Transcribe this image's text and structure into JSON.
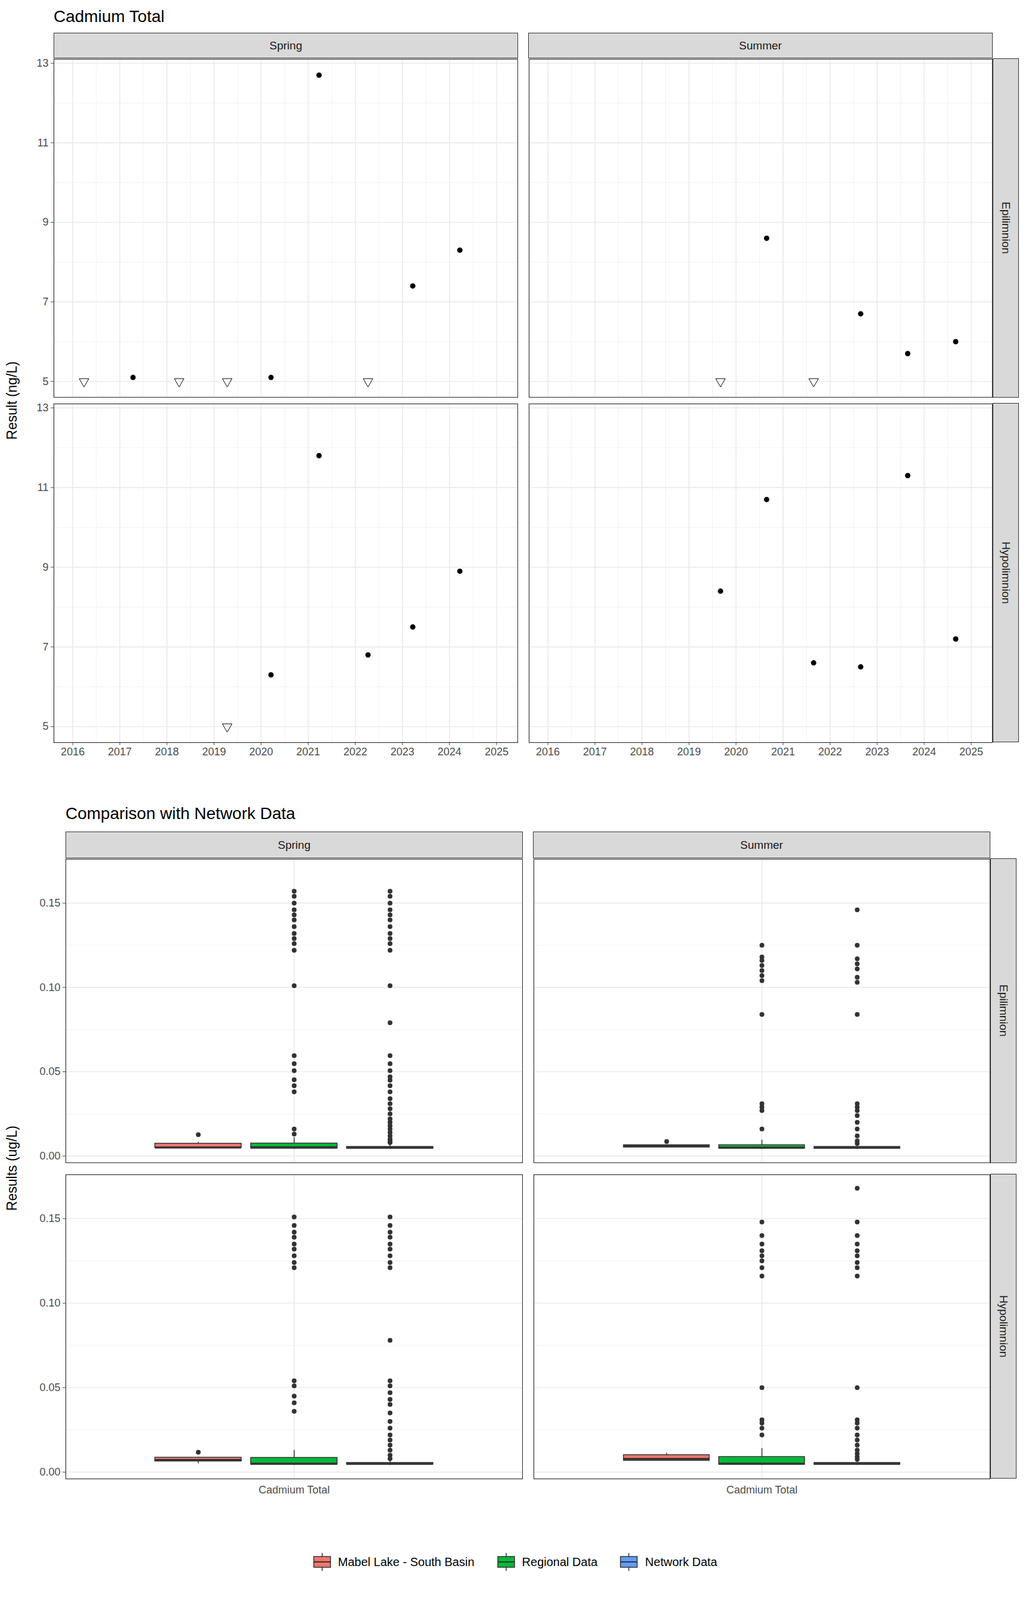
{
  "chart_data": [
    {
      "type": "scatter",
      "title": "Cadmium Total",
      "y_label": "Result (ng/L)",
      "xlim": [
        2015.6,
        2025.45
      ],
      "xticks": [
        2016,
        2017,
        2018,
        2019,
        2020,
        2021,
        2022,
        2023,
        2024,
        2025
      ],
      "ylim": [
        4.6,
        13.1
      ],
      "yticks": [
        5,
        7,
        9,
        11,
        13
      ],
      "grid": true,
      "columns": [
        "Spring",
        "Summer"
      ],
      "rows": [
        "Epilimnion",
        "Hypolimnion"
      ],
      "panels": [
        {
          "column": "Spring",
          "row": "Epilimnion",
          "series": [
            {
              "marker": "circle",
              "x": [
                2017.28,
                2020.21,
                2021.23,
                2023.22,
                2024.22
              ],
              "values": [
                5.1,
                5.1,
                12.7,
                7.4,
                8.3
              ]
            },
            {
              "marker": "triangle-down-open",
              "x": [
                2016.24,
                2018.26,
                2019.28,
                2022.27
              ],
              "values": [
                5,
                5,
                5,
                5
              ]
            }
          ]
        },
        {
          "column": "Summer",
          "row": "Epilimnion",
          "series": [
            {
              "marker": "circle",
              "x": [
                2020.65,
                2022.65,
                2023.65,
                2024.67
              ],
              "values": [
                8.6,
                6.7,
                5.7,
                6.0
              ]
            },
            {
              "marker": "triangle-down-open",
              "x": [
                2019.67,
                2021.65
              ],
              "values": [
                5,
                5
              ]
            }
          ]
        },
        {
          "column": "Spring",
          "row": "Hypolimnion",
          "series": [
            {
              "marker": "circle",
              "x": [
                2020.21,
                2021.23,
                2022.27,
                2023.22,
                2024.22
              ],
              "values": [
                6.3,
                11.8,
                6.8,
                7.5,
                8.9
              ]
            },
            {
              "marker": "triangle-down-open",
              "x": [
                2019.28
              ],
              "values": [
                5
              ]
            }
          ]
        },
        {
          "column": "Summer",
          "row": "Hypolimnion",
          "series": [
            {
              "marker": "circle",
              "x": [
                2019.67,
                2020.65,
                2021.65,
                2022.65,
                2023.65,
                2024.67
              ],
              "values": [
                8.4,
                10.7,
                6.6,
                6.5,
                11.3,
                7.2
              ]
            }
          ]
        }
      ]
    },
    {
      "type": "box",
      "title": "Comparison with Network Data",
      "y_label": "Results (ug/L)",
      "categories": [
        "Cadmium Total"
      ],
      "ylim": [
        -0.004,
        0.176
      ],
      "yticks": [
        {
          "value": 0,
          "label": "0.00"
        },
        0.05,
        {
          "value": 0.1,
          "label": "0.10"
        },
        0.15
      ],
      "grid": true,
      "legend": "bottom",
      "columns": [
        "Spring",
        "Summer"
      ],
      "rows": [
        "Epilimnion",
        "Hypolimnion"
      ],
      "series": [
        {
          "name": "Mabel Lake - South Basin",
          "color": "#F8766D"
        },
        {
          "name": "Regional Data",
          "color": "#00BA38"
        },
        {
          "name": "Network Data",
          "color": "#619CFF"
        }
      ],
      "panels": [
        {
          "column": "Spring",
          "row": "Epilimnion",
          "boxes": [
            {
              "q1": 0.005,
              "median": 0.0051,
              "q3": 0.0074,
              "whisker_low": 0.005,
              "whisker_high": 0.0083,
              "outliers": [
                0.0127
              ]
            },
            {
              "q1": 0.0045,
              "median": 0.0052,
              "q3": 0.0075,
              "whisker_low": 0.004,
              "whisker_high": 0.011,
              "outliers": [
                0.157,
                0.154,
                0.15,
                0.146,
                0.143,
                0.14,
                0.136,
                0.132,
                0.129,
                0.126,
                0.122,
                0.101,
                0.0595,
                0.0548,
                0.0506,
                0.0452,
                0.0417,
                0.0381,
                0.016,
                0.013
              ]
            },
            {
              "q1": 0.0045,
              "median": 0.005,
              "q3": 0.0055,
              "whisker_low": 0.004,
              "whisker_high": 0.007,
              "outliers": [
                0.157,
                0.154,
                0.15,
                0.146,
                0.143,
                0.14,
                0.136,
                0.132,
                0.129,
                0.126,
                0.122,
                0.101,
                0.079,
                0.0595,
                0.0548,
                0.0506,
                0.047,
                0.045,
                0.0417,
                0.0381,
                0.034,
                0.031,
                0.028,
                0.025,
                0.022,
                0.02,
                0.018,
                0.016,
                0.014,
                0.012,
                0.01,
                0.009,
                0.008
              ]
            }
          ]
        },
        {
          "column": "Summer",
          "row": "Epilimnion",
          "boxes": [
            {
              "q1": 0.0052,
              "median": 0.0059,
              "q3": 0.0065,
              "whisker_low": 0.005,
              "whisker_high": 0.0067,
              "outliers": [
                0.0086
              ]
            },
            {
              "q1": 0.0045,
              "median": 0.005,
              "q3": 0.0065,
              "whisker_low": 0.004,
              "whisker_high": 0.0095,
              "outliers": [
                0.125,
                0.118,
                0.116,
                0.113,
                0.11,
                0.107,
                0.104,
                0.084,
                0.031,
                0.029,
                0.027,
                0.016
              ]
            },
            {
              "q1": 0.0045,
              "median": 0.005,
              "q3": 0.0055,
              "whisker_low": 0.004,
              "whisker_high": 0.0068,
              "outliers": [
                0.146,
                0.125,
                0.117,
                0.114,
                0.111,
                0.106,
                0.103,
                0.084,
                0.031,
                0.029,
                0.027,
                0.024,
                0.02,
                0.016,
                0.012,
                0.009,
                0.0075
              ]
            }
          ]
        },
        {
          "column": "Spring",
          "row": "Hypolimnion",
          "boxes": [
            {
              "q1": 0.0064,
              "median": 0.0072,
              "q3": 0.0086,
              "whisker_low": 0.005,
              "whisker_high": 0.0089,
              "outliers": [
                0.0118
              ]
            },
            {
              "q1": 0.0045,
              "median": 0.005,
              "q3": 0.0085,
              "whisker_low": 0.004,
              "whisker_high": 0.013,
              "outliers": [
                0.151,
                0.146,
                0.142,
                0.139,
                0.135,
                0.132,
                0.128,
                0.124,
                0.121,
                0.054,
                0.051,
                0.045,
                0.041,
                0.036
              ]
            },
            {
              "q1": 0.0045,
              "median": 0.005,
              "q3": 0.0055,
              "whisker_low": 0.004,
              "whisker_high": 0.007,
              "outliers": [
                0.151,
                0.146,
                0.142,
                0.139,
                0.135,
                0.132,
                0.128,
                0.124,
                0.121,
                0.078,
                0.054,
                0.051,
                0.047,
                0.043,
                0.04,
                0.035,
                0.03,
                0.026,
                0.022,
                0.019,
                0.016,
                0.013,
                0.01,
                0.008
              ]
            }
          ]
        },
        {
          "column": "Summer",
          "row": "Hypolimnion",
          "boxes": [
            {
              "q1": 0.0068,
              "median": 0.0078,
              "q3": 0.0101,
              "whisker_low": 0.0065,
              "whisker_high": 0.0113,
              "outliers": []
            },
            {
              "q1": 0.0045,
              "median": 0.005,
              "q3": 0.009,
              "whisker_low": 0.004,
              "whisker_high": 0.014,
              "outliers": [
                0.148,
                0.14,
                0.135,
                0.131,
                0.128,
                0.125,
                0.121,
                0.116,
                0.05,
                0.031,
                0.029,
                0.026,
                0.022
              ]
            },
            {
              "q1": 0.0045,
              "median": 0.005,
              "q3": 0.0055,
              "whisker_low": 0.004,
              "whisker_high": 0.007,
              "outliers": [
                0.168,
                0.148,
                0.14,
                0.135,
                0.131,
                0.128,
                0.124,
                0.121,
                0.116,
                0.05,
                0.031,
                0.029,
                0.026,
                0.022,
                0.019,
                0.016,
                0.013,
                0.011,
                0.009,
                0.0075
              ]
            }
          ]
        }
      ]
    }
  ]
}
